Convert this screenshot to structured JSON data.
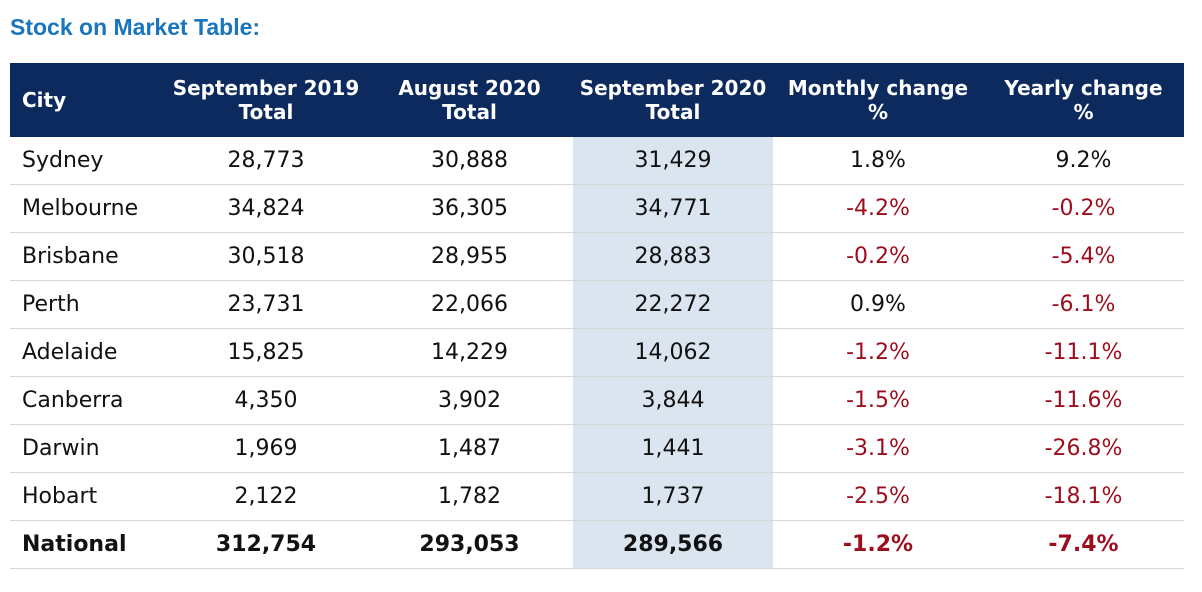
{
  "title": "Stock on Market Table:",
  "headers": [
    {
      "line1": "City",
      "line2": ""
    },
    {
      "line1": "September 2019",
      "line2": "Total"
    },
    {
      "line1": "August 2020",
      "line2": "Total"
    },
    {
      "line1": "September 2020",
      "line2": "Total"
    },
    {
      "line1": "Monthly change",
      "line2": "%"
    },
    {
      "line1": "Yearly change",
      "line2": "%"
    }
  ],
  "rows": [
    {
      "city": "Sydney",
      "sep2019": "28,773",
      "aug2020": "30,888",
      "sep2020": "31,429",
      "monthly": "1.8%",
      "yearly": "9.2%"
    },
    {
      "city": "Melbourne",
      "sep2019": "34,824",
      "aug2020": "36,305",
      "sep2020": "34,771",
      "monthly": "-4.2%",
      "yearly": "-0.2%"
    },
    {
      "city": "Brisbane",
      "sep2019": "30,518",
      "aug2020": "28,955",
      "sep2020": "28,883",
      "monthly": "-0.2%",
      "yearly": "-5.4%"
    },
    {
      "city": "Perth",
      "sep2019": "23,731",
      "aug2020": "22,066",
      "sep2020": "22,272",
      "monthly": "0.9%",
      "yearly": "-6.1%"
    },
    {
      "city": "Adelaide",
      "sep2019": "15,825",
      "aug2020": "14,229",
      "sep2020": "14,062",
      "monthly": "-1.2%",
      "yearly": "-11.1%"
    },
    {
      "city": "Canberra",
      "sep2019": "4,350",
      "aug2020": "3,902",
      "sep2020": "3,844",
      "monthly": "-1.5%",
      "yearly": "-11.6%"
    },
    {
      "city": "Darwin",
      "sep2019": "1,969",
      "aug2020": "1,487",
      "sep2020": "1,441",
      "monthly": "-3.1%",
      "yearly": "-26.8%"
    },
    {
      "city": "Hobart",
      "sep2019": "2,122",
      "aug2020": "1,782",
      "sep2020": "1,737",
      "monthly": "-2.5%",
      "yearly": "-18.1%"
    }
  ],
  "total": {
    "city": "National",
    "sep2019": "312,754",
    "aug2020": "293,053",
    "sep2020": "289,566",
    "monthly": "-1.2%",
    "yearly": "-7.4%"
  },
  "colors": {
    "title": "#1a75bc",
    "header_bg": "#0c2a5e",
    "highlight_col": "#dbe5f0",
    "negative": "#9c0e1e"
  }
}
